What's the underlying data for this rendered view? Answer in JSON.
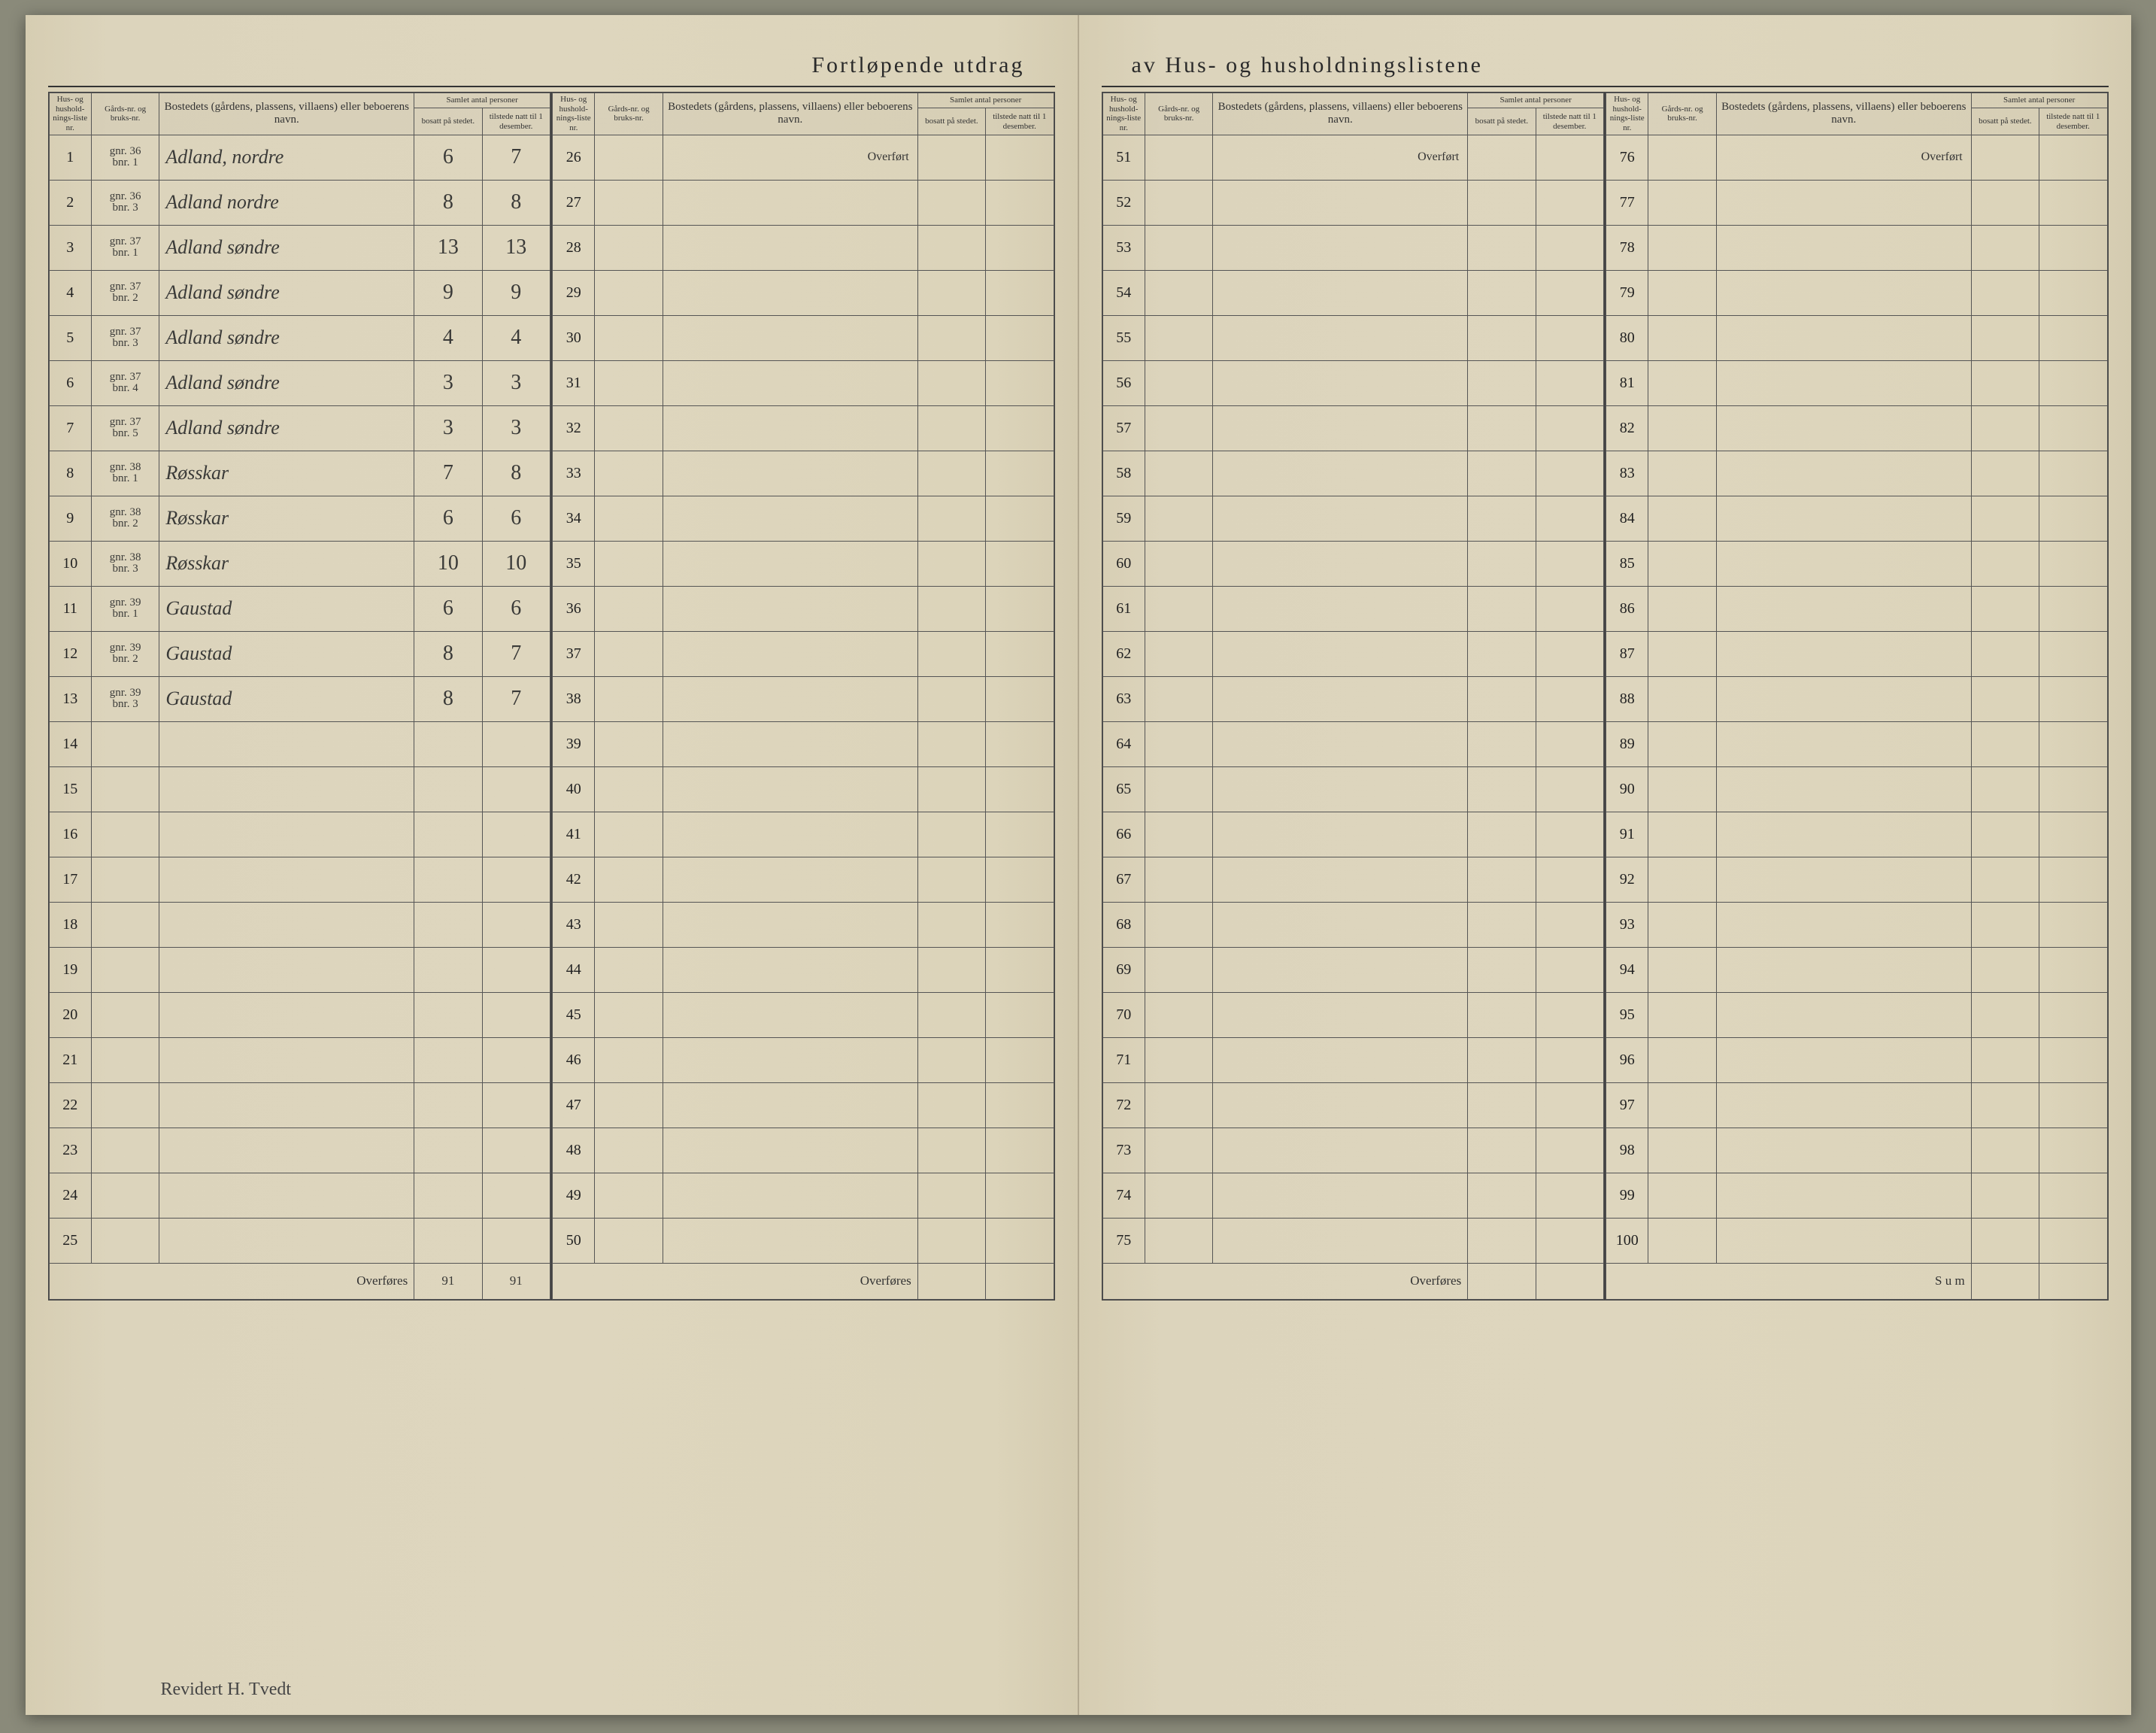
{
  "title_left": "Fortløpende utdrag",
  "title_right": "av Hus- og husholdningslistene",
  "headers": {
    "liste": "Hus- og hushold-nings-liste nr.",
    "gard": "Gårds-nr. og bruks-nr.",
    "navn": "Bostedets (gårdens, plassens, villaens) eller beboerens navn.",
    "samlet": "Samlet antal personer",
    "bosatt": "bosatt på stedet.",
    "tilstede": "tilstede natt til 1 desember."
  },
  "overfort": "Overført",
  "overfores": "Overføres",
  "sum": "S u m",
  "entries": [
    {
      "n": "1",
      "g1": "gnr. 36",
      "g2": "bnr. 1",
      "navn": "Adland, nordre",
      "b": "6",
      "t": "7"
    },
    {
      "n": "2",
      "g1": "gnr. 36",
      "g2": "bnr. 3",
      "navn": "Adland nordre",
      "b": "8",
      "t": "8"
    },
    {
      "n": "3",
      "g1": "gnr. 37",
      "g2": "bnr. 1",
      "navn": "Adland søndre",
      "b": "13",
      "t": "13"
    },
    {
      "n": "4",
      "g1": "gnr. 37",
      "g2": "bnr. 2",
      "navn": "Adland søndre",
      "b": "9",
      "t": "9"
    },
    {
      "n": "5",
      "g1": "gnr. 37",
      "g2": "bnr. 3",
      "navn": "Adland søndre",
      "b": "4",
      "t": "4"
    },
    {
      "n": "6",
      "g1": "gnr. 37",
      "g2": "bnr. 4",
      "navn": "Adland søndre",
      "b": "3",
      "t": "3"
    },
    {
      "n": "7",
      "g1": "gnr. 37",
      "g2": "bnr. 5",
      "navn": "Adland søndre",
      "b": "3",
      "t": "3"
    },
    {
      "n": "8",
      "g1": "gnr. 38",
      "g2": "bnr. 1",
      "navn": "Røsskar",
      "b": "7",
      "t": "8"
    },
    {
      "n": "9",
      "g1": "gnr. 38",
      "g2": "bnr. 2",
      "navn": "Røsskar",
      "b": "6",
      "t": "6"
    },
    {
      "n": "10",
      "g1": "gnr. 38",
      "g2": "bnr. 3",
      "navn": "Røsskar",
      "b": "10",
      "t": "10"
    },
    {
      "n": "11",
      "g1": "gnr. 39",
      "g2": "bnr. 1",
      "navn": "Gaustad",
      "b": "6",
      "t": "6"
    },
    {
      "n": "12",
      "g1": "gnr. 39",
      "g2": "bnr. 2",
      "navn": "Gaustad",
      "b": "8",
      "t": "7"
    },
    {
      "n": "13",
      "g1": "gnr. 39",
      "g2": "bnr. 3",
      "navn": "Gaustad",
      "b": "8",
      "t": "7"
    }
  ],
  "empty_left_a": [
    "14",
    "15",
    "16",
    "17",
    "18",
    "19",
    "20",
    "21",
    "22",
    "23",
    "24",
    "25"
  ],
  "right_a": [
    "26",
    "27",
    "28",
    "29",
    "30",
    "31",
    "32",
    "33",
    "34",
    "35",
    "36",
    "37",
    "38",
    "39",
    "40",
    "41",
    "42",
    "43",
    "44",
    "45",
    "46",
    "47",
    "48",
    "49",
    "50"
  ],
  "left_b": [
    "51",
    "52",
    "53",
    "54",
    "55",
    "56",
    "57",
    "58",
    "59",
    "60",
    "61",
    "62",
    "63",
    "64",
    "65",
    "66",
    "67",
    "68",
    "69",
    "70",
    "71",
    "72",
    "73",
    "74",
    "75"
  ],
  "right_b": [
    "76",
    "77",
    "78",
    "79",
    "80",
    "81",
    "82",
    "83",
    "84",
    "85",
    "86",
    "87",
    "88",
    "89",
    "90",
    "91",
    "92",
    "93",
    "94",
    "95",
    "96",
    "97",
    "98",
    "99",
    "100"
  ],
  "totals": {
    "b": "91",
    "t": "91",
    "b2": "✓",
    "t2": "✓"
  },
  "signature": "Revidert\nH. Tvedt"
}
